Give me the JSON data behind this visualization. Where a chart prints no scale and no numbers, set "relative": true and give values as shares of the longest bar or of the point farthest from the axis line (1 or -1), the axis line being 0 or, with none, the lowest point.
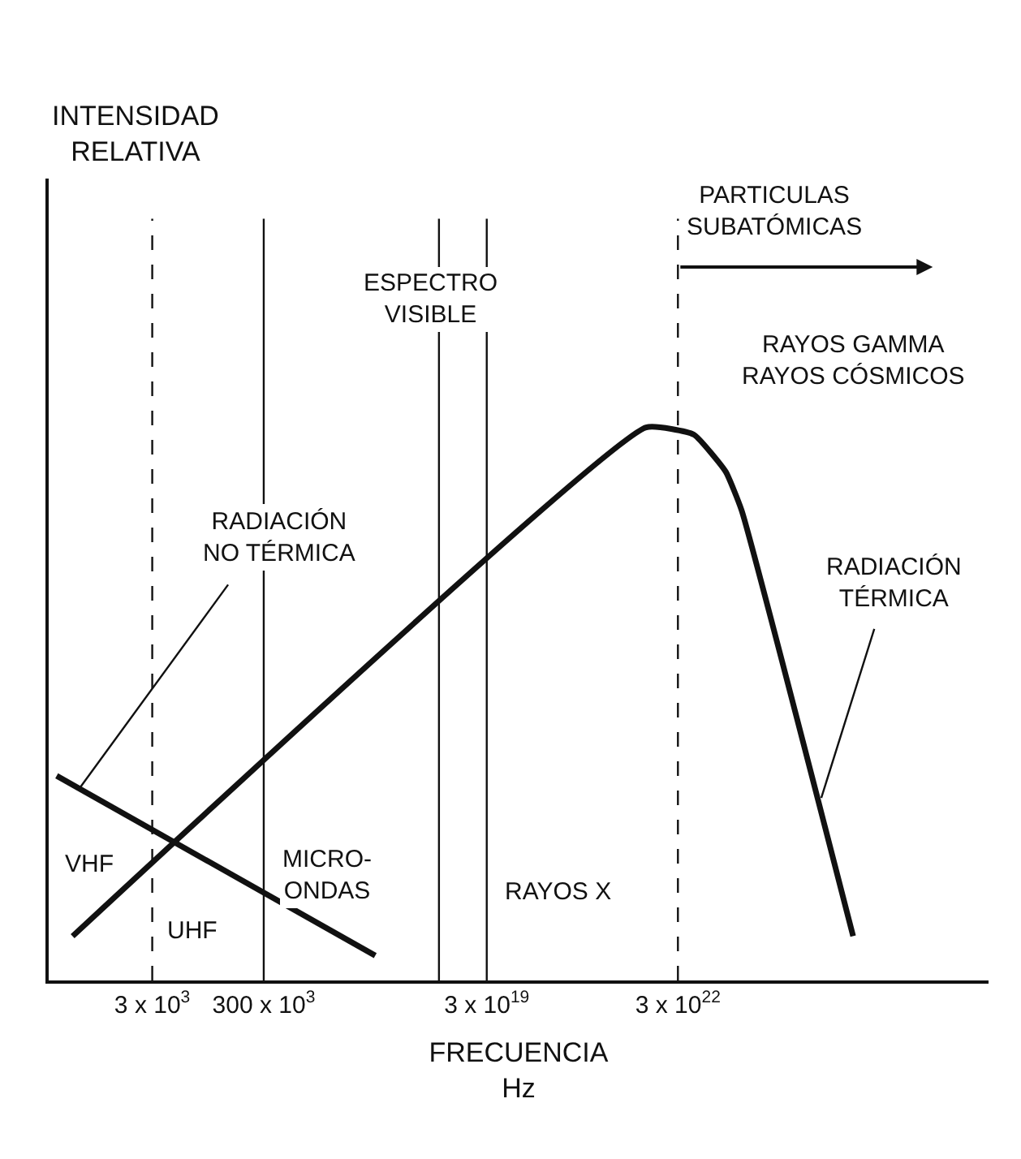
{
  "chart_data": {
    "type": "line",
    "relative": true,
    "xlabel": "FRECUENCIA\nHz",
    "categories": [
      null,
      null,
      null,
      null,
      null,
      null,
      "3 x 10$^{3}$",
      null,
      null,
      null,
      null,
      null,
      null,
      "300 x 10$^{3}$",
      null,
      null,
      null,
      null,
      null,
      null,
      null,
      null,
      null,
      null,
      null,
      null,
      null,
      "3 x 10$^{19}$",
      null,
      null,
      null,
      null,
      null,
      null,
      null,
      null,
      null,
      null,
      null,
      "3 x 10$^{22}$",
      null,
      null,
      null,
      null,
      null,
      null,
      null,
      null,
      null,
      null,
      null,
      null,
      null,
      null,
      null,
      null,
      null,
      null,
      null
    ],
    "series": [
      {
        "color": "#111111",
        "values": [
          null,
          0.08,
          null,
          null,
          null,
          null,
          null,
          null,
          null,
          null,
          null,
          null,
          null,
          null,
          null,
          null,
          null,
          null,
          null,
          null,
          null,
          null,
          null,
          null,
          null,
          null,
          null,
          null,
          null,
          null,
          null,
          null,
          null,
          null,
          null,
          null,
          null,
          1.0,
          null,
          null,
          0.987,
          null,
          0.92,
          0.85,
          null,
          null,
          null,
          null,
          null,
          null,
          0.08,
          null,
          null,
          null,
          null,
          null,
          null,
          null,
          null
        ]
      },
      {
        "color": "#111111",
        "values": [
          0.37,
          null,
          null,
          null,
          null,
          null,
          null,
          null,
          null,
          null,
          null,
          null,
          null,
          null,
          null,
          null,
          null,
          null,
          null,
          null,
          0.045,
          null,
          null,
          null,
          null,
          null,
          null,
          null,
          null,
          null,
          null,
          null,
          null,
          null,
          null,
          null,
          null,
          null,
          null,
          null,
          null,
          null,
          null,
          null,
          null,
          null,
          null,
          null,
          null,
          null,
          null,
          null,
          null,
          null,
          null,
          null,
          null,
          null,
          null
        ]
      }
    ],
    "annotations": [
      "INTENSIDAD\nRELATIVA",
      "ESPECTRO\nVISIBLE",
      "PARTICULAS\nSUBATÓMICAS",
      "RAYOS GAMMA\nRAYOS CÓSMICOS",
      "RADIACIÓN\nNO TÉRMICA",
      "RADIACIÓN\nTÉRMICA",
      "VHF",
      "UHF",
      "MICRO-\nONDAS",
      "RAYOS X"
    ],
    "grid": "x",
    "marker": "none",
    "line_style": "solid"
  }
}
